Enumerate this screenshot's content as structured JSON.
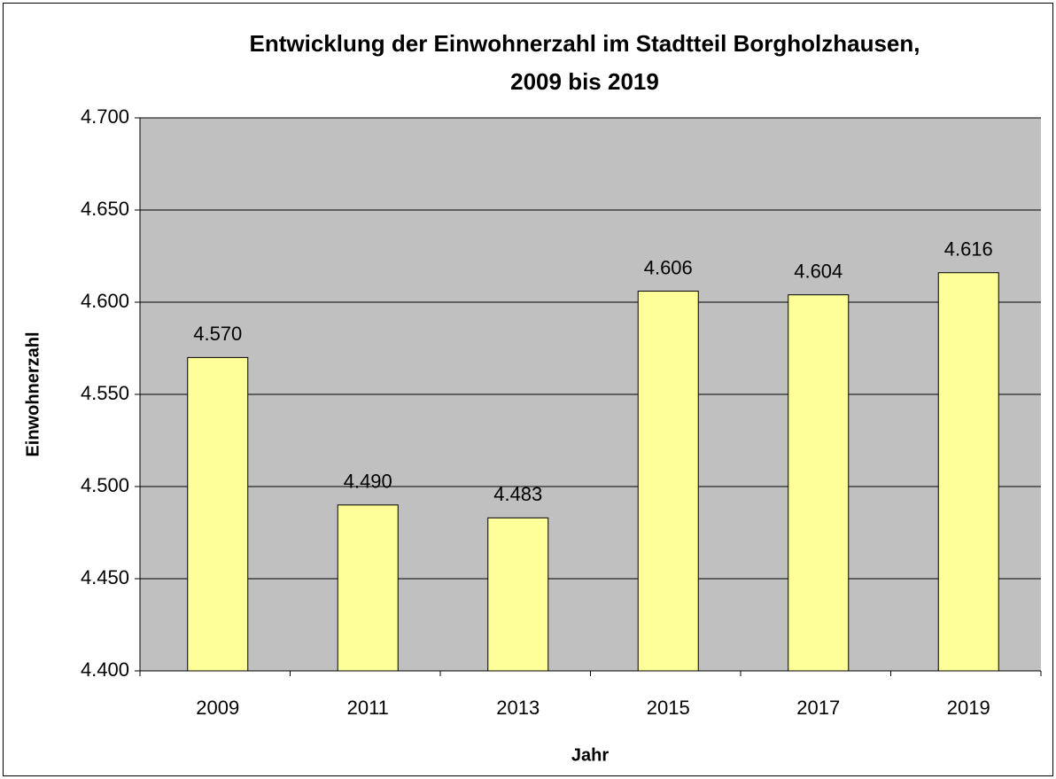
{
  "chart_data": {
    "type": "bar",
    "title": [
      "Entwicklung der Einwohnerzahl im Stadtteil Borgholzhausen,",
      "2009 bis 2019"
    ],
    "xlabel": "Jahr",
    "ylabel": "Einwohnerzahl",
    "categories": [
      "2009",
      "2011",
      "2013",
      "2015",
      "2017",
      "2019"
    ],
    "values": [
      4570,
      4490,
      4483,
      4606,
      4604,
      4616
    ],
    "value_labels": [
      "4.570",
      "4.490",
      "4.483",
      "4.606",
      "4.604",
      "4.616"
    ],
    "color": "#ffff99",
    "background": "#c0c0c0",
    "ylim": [
      4400,
      4700
    ],
    "yticks": [
      {
        "value": 4400,
        "label": "4.400"
      },
      {
        "value": 4450,
        "label": "4.450"
      },
      {
        "value": 4500,
        "label": "4.500"
      },
      {
        "value": 4550,
        "label": "4.550"
      },
      {
        "value": 4600,
        "label": "4.600"
      },
      {
        "value": 4650,
        "label": "4.650"
      },
      {
        "value": 4700,
        "label": "4.700"
      }
    ],
    "grid": true
  }
}
